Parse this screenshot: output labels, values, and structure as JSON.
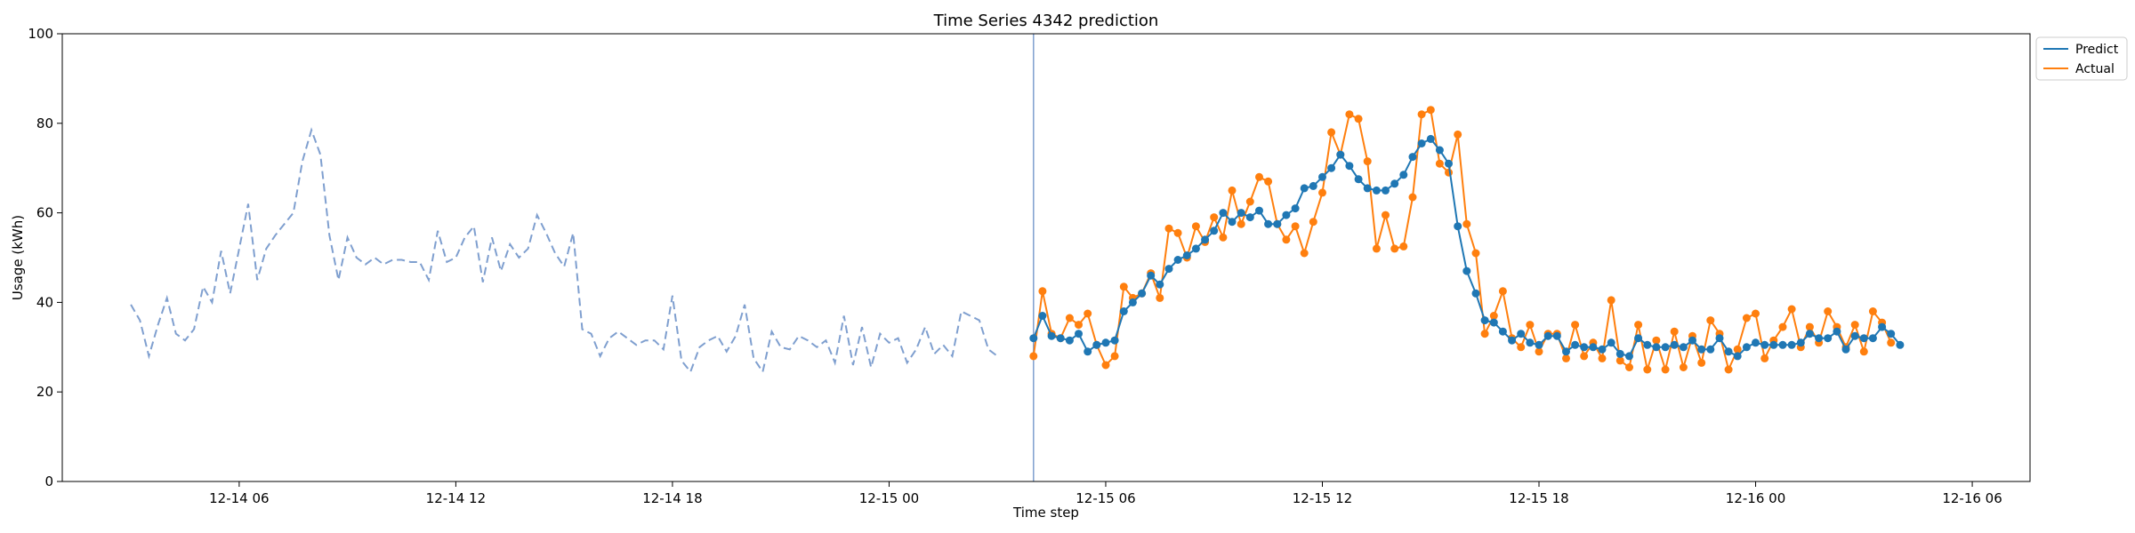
{
  "chart_data": {
    "type": "line",
    "title": "Time Series 4342 prediction",
    "xlabel": "Time step",
    "ylabel": "Usage (kWh)",
    "x_unit": "hours since 12-14 00:00",
    "xlim": [
      1.1,
      55.6
    ],
    "ylim": [
      0,
      100
    ],
    "y_ticks": [
      0,
      20,
      40,
      60,
      80,
      100
    ],
    "x_ticks": [
      {
        "label": "12-14 06",
        "value": 6
      },
      {
        "label": "12-14 12",
        "value": 12
      },
      {
        "label": "12-14 18",
        "value": 18
      },
      {
        "label": "12-15 00",
        "value": 24
      },
      {
        "label": "12-15 06",
        "value": 30
      },
      {
        "label": "12-15 12",
        "value": 36
      },
      {
        "label": "12-15 18",
        "value": 42
      },
      {
        "label": "12-16 00",
        "value": 48
      },
      {
        "label": "12-16 06",
        "value": 54
      }
    ],
    "forecast_start": 28.0,
    "legend": {
      "position": "top-right",
      "entries": [
        "Predict",
        "Actual"
      ]
    },
    "colors": {
      "predict": "#1f77b4",
      "actual": "#ff7f0e",
      "history": "#7f9fcf",
      "divider": "#7f9fcf"
    },
    "history": {
      "name": "History",
      "start": 3.0,
      "step": 0.25,
      "values": [
        39.5,
        36,
        28,
        35,
        41,
        33,
        31.5,
        34,
        43.5,
        40,
        51.5,
        42,
        52,
        62,
        45,
        52,
        55,
        57.5,
        60,
        71.5,
        78.5,
        73,
        55,
        45,
        54.5,
        50,
        48.5,
        50,
        48.5,
        49.5,
        49.5,
        49,
        49,
        45,
        56,
        49,
        50,
        54.5,
        57,
        44.5,
        54.5,
        47,
        53,
        50,
        52,
        59.5,
        55.5,
        51,
        48,
        55.5,
        34,
        33,
        28,
        32,
        33.5,
        32,
        30.5,
        31.5,
        31.5,
        29.5,
        41.5,
        27,
        24.5,
        30,
        31.5,
        32.5,
        29,
        32.5,
        39.5,
        27.5,
        24.5,
        33.5,
        30,
        29.5,
        32.5,
        31.5,
        30,
        31.5,
        26.5,
        37,
        26,
        34.5,
        25.5,
        33,
        31,
        32,
        26.5,
        29.5,
        34.5,
        28.5,
        30.5,
        28,
        38,
        37,
        36,
        29.5,
        28
      ]
    },
    "series": [
      {
        "name": "Predict",
        "start": 28.0,
        "step": 0.25,
        "values": [
          32,
          37,
          32.5,
          32,
          31.5,
          33,
          29,
          30.5,
          31,
          31.5,
          38,
          40,
          42,
          46,
          44,
          47.5,
          49.5,
          50.5,
          52,
          54,
          56,
          60,
          58,
          60,
          59,
          60.5,
          57.5,
          57.5,
          59.5,
          61,
          65.5,
          66,
          68,
          70,
          73,
          70.5,
          67.5,
          65.5,
          65,
          65,
          66.5,
          68.5,
          72.5,
          75.5,
          76.5,
          74,
          71,
          57,
          47,
          42,
          36,
          35.5,
          33.5,
          31.5,
          33,
          31,
          30.5,
          32.5,
          32.5,
          29,
          30.5,
          30,
          30,
          29.5,
          31,
          28.5,
          28,
          32,
          30.5,
          30,
          30,
          30.5,
          30,
          31.5,
          29.5,
          29.5,
          32,
          29,
          28,
          30,
          31,
          30.5,
          30.5,
          30.5,
          30.5,
          31,
          33,
          32,
          32,
          33.5,
          29.5,
          32.5,
          32,
          32,
          34.5,
          33,
          30.5
        ]
      },
      {
        "name": "Actual",
        "start": 28.0,
        "step": 0.25,
        "values": [
          28,
          42.5,
          33,
          32,
          36.5,
          35,
          37.5,
          30.5,
          26,
          28,
          43.5,
          41,
          42,
          46.5,
          41,
          56.5,
          55.5,
          50,
          57,
          53.5,
          59,
          54.5,
          65,
          57.5,
          62.5,
          68,
          67,
          57.5,
          54,
          57,
          51,
          58,
          64.5,
          78,
          73,
          82,
          81,
          71.5,
          52,
          59.5,
          52,
          52.5,
          63.5,
          82,
          83,
          71,
          69,
          77.5,
          57.5,
          51,
          33,
          37,
          42.5,
          32,
          30,
          35,
          29,
          33,
          33,
          27.5,
          35,
          28,
          31,
          27.5,
          40.5,
          27,
          25.5,
          35,
          25,
          31.5,
          25,
          33.5,
          25.5,
          32.5,
          26.5,
          36,
          33,
          25,
          29.5,
          36.5,
          37.5,
          27.5,
          31.5,
          34.5,
          38.5,
          30,
          34.5,
          31,
          38,
          34.5,
          30,
          35,
          29,
          38,
          35.5,
          31
        ]
      }
    ]
  }
}
